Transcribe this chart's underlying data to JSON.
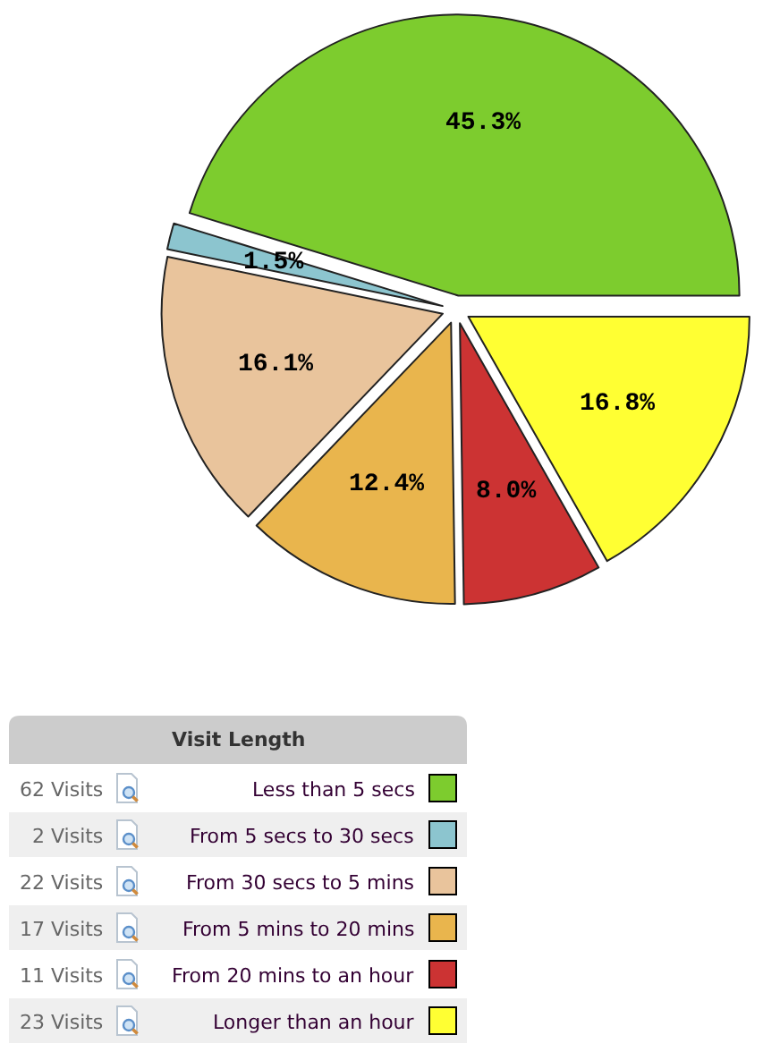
{
  "chart_data": {
    "type": "pie",
    "legend_title": "Visit Length",
    "categories": [
      "Less than 5 secs",
      "From 5 secs to 30 secs",
      "From 30 secs to 5 mins",
      "From 5 mins to 20 mins",
      "From 20 mins to an hour",
      "Longer than an hour"
    ],
    "values": [
      45.3,
      1.5,
      16.1,
      12.4,
      8.0,
      16.8
    ],
    "value_labels": [
      "45.3%",
      "1.5%",
      "16.1%",
      "12.4%",
      "8.0%",
      "16.8%"
    ],
    "colors": [
      "#7dcc2e",
      "#8cc5cf",
      "#e9c49c",
      "#e9b54d",
      "#cc3333",
      "#ffff33"
    ],
    "legend": "bottom left",
    "annotations": [
      "62 Visits",
      "2 Visits",
      "22 Visits",
      "17 Visits",
      "11 Visits",
      "23 Visits"
    ]
  }
}
